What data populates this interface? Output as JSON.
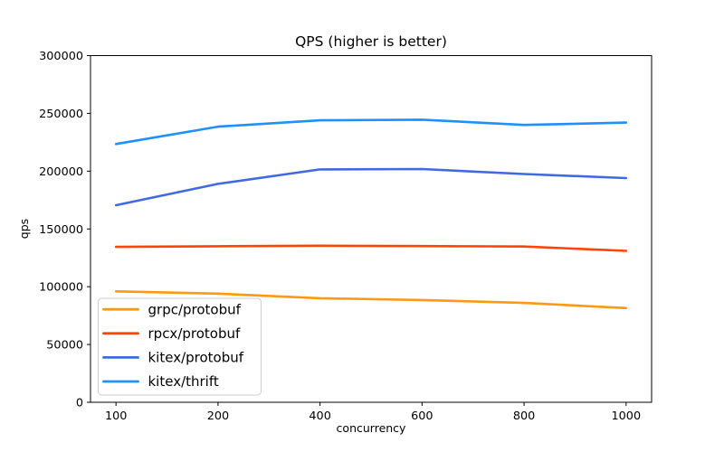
{
  "chart_data": {
    "type": "line",
    "title": "QPS (higher is better)",
    "xlabel": "concurrency",
    "ylabel": "qps",
    "categories": [
      "100",
      "200",
      "400",
      "600",
      "800",
      "1000"
    ],
    "ylim": [
      0,
      300000
    ],
    "yticks": [
      0,
      50000,
      100000,
      150000,
      200000,
      250000,
      300000
    ],
    "grid": false,
    "legend_position": "lower left",
    "series": [
      {
        "name": "grpc/protobuf",
        "color": "#ff9913",
        "values": [
          96000,
          94000,
          90000,
          88500,
          86000,
          81500
        ]
      },
      {
        "name": "rpcx/protobuf",
        "color": "#ff4500",
        "values": [
          134500,
          135000,
          135500,
          135200,
          134800,
          131000
        ]
      },
      {
        "name": "kitex/protobuf",
        "color": "#4169e1",
        "values": [
          170500,
          189000,
          201500,
          201800,
          197500,
          194000
        ]
      },
      {
        "name": "kitex/thrift",
        "color": "#1e90ff",
        "values": [
          223500,
          238500,
          244000,
          244500,
          240000,
          242000
        ]
      }
    ]
  }
}
